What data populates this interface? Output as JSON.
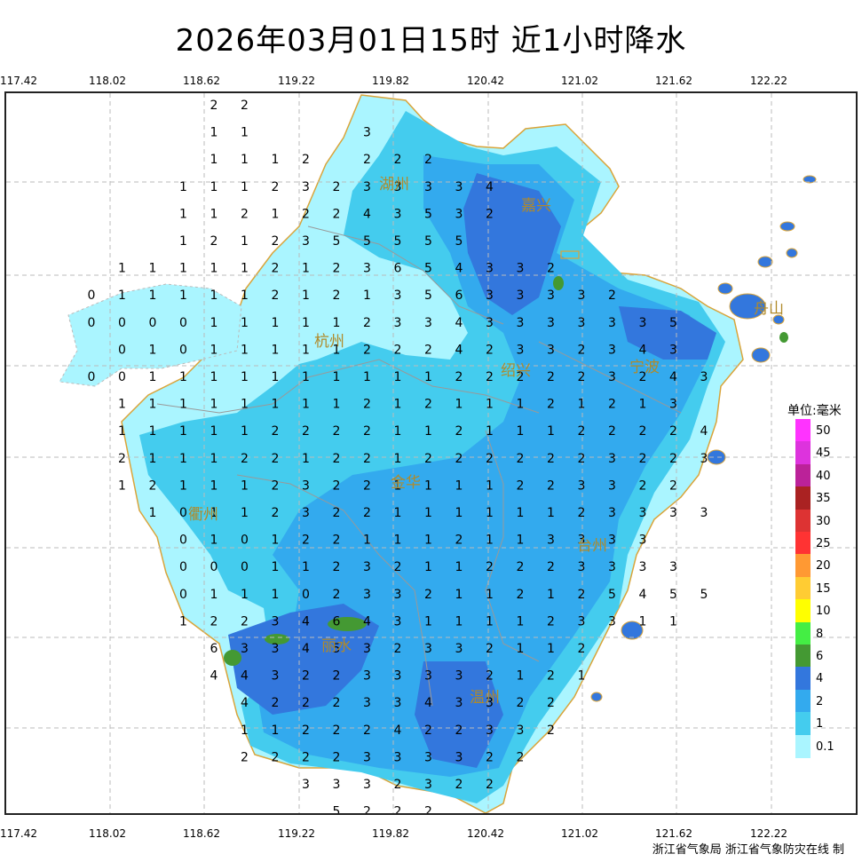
{
  "title": "2026年03月01日15时  近1小时降水",
  "lon_labels": [
    "117.42",
    "118.02",
    "118.62",
    "119.22",
    "119.82",
    "120.42",
    "121.02",
    "121.62",
    "122.22"
  ],
  "cities": [
    "湖州",
    "嘉兴",
    "杭州",
    "绍兴",
    "宁波",
    "金华",
    "衢州",
    "台州",
    "丽水",
    "温州",
    "舟山"
  ],
  "legend": {
    "title": "单位:毫米",
    "levels": [
      {
        "label": "50",
        "color": "#ff33ff"
      },
      {
        "label": "45",
        "color": "#dd33dd"
      },
      {
        "label": "40",
        "color": "#bb2299"
      },
      {
        "label": "35",
        "color": "#aa2222"
      },
      {
        "label": "30",
        "color": "#dd3333"
      },
      {
        "label": "25",
        "color": "#ff3333"
      },
      {
        "label": "20",
        "color": "#ff9933"
      },
      {
        "label": "15",
        "color": "#ffcc33"
      },
      {
        "label": "10",
        "color": "#ffff00"
      },
      {
        "label": "8",
        "color": "#44ee44"
      },
      {
        "label": "6",
        "color": "#449933"
      },
      {
        "label": "4",
        "color": "#3377dd"
      },
      {
        "label": "2",
        "color": "#33aaee"
      },
      {
        "label": "1",
        "color": "#44ccee"
      },
      {
        "label": "0.1",
        "color": "#aaf5ff"
      }
    ]
  },
  "credit": "浙江省气象局  浙江省气象防灾在线  制",
  "grid_values": [
    "....22...........",
    "....11...3.......",
    "....1112.222.....",
    "...11123233334...",
    "...11212243532...",
    "...1212355555....",
    ".111112123654332.",
    "011111212135633332",
    "00001111123343333335",
    ".0101111122242332343",
    "001111111111222223243",
    ".1111111121211121213",
    ".11111222211211122224",
    ".21112212212222223223",
    ".1211123221111223322",
    "..1011232211111123333",
    "...0101221112113333",
    "...00011232112223333",
    "...011102332112125455",
    "...12234643111123311",
    "....6334532332112....",
    "....4432233332121....",
    ".....42223343322.....",
    ".....11222422332.....",
    ".....2222333322......",
    ".......3332322.......",
    "........5222........."
  ]
}
